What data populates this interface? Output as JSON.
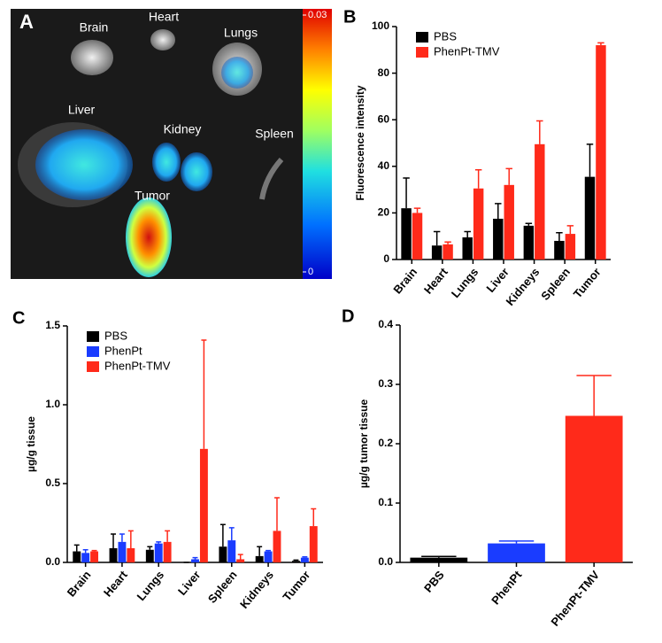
{
  "panel_a": {
    "panel_label": "A",
    "organs": [
      "Brain",
      "Heart",
      "Lungs",
      "Liver",
      "Kidney",
      "Spleen",
      "Tumor"
    ],
    "colorbar_ticks": [
      {
        "value": 0.03,
        "label": "0.03"
      },
      0
    ]
  },
  "chart_data": [
    {
      "type": "bar",
      "panel_label": "B",
      "y_label": "Fluorescence intensity",
      "categories": [
        "Brain",
        "Heart",
        "Lungs",
        "Liver",
        "Kidneys",
        "Spleen",
        "Tumor"
      ],
      "series": [
        {
          "name": "PBS",
          "color": "#000000",
          "values": [
            22,
            6,
            9.5,
            17.5,
            14.5,
            8,
            35.5
          ],
          "errors": [
            13,
            6,
            2.5,
            6.5,
            1,
            3.5,
            14
          ]
        },
        {
          "name": "PhenPt-TMV",
          "color": "#ff2a1a",
          "values": [
            20,
            6.5,
            30.5,
            32,
            49.5,
            11,
            92
          ],
          "errors": [
            2,
            1,
            8,
            7,
            10,
            3.5,
            1
          ]
        }
      ],
      "ylim": [
        0,
        100
      ],
      "yticks": [
        0,
        20,
        40,
        60,
        80,
        100
      ],
      "legend": "top-left"
    },
    {
      "type": "bar",
      "panel_label": "C",
      "y_label": "µg/g tissue",
      "categories": [
        "Brain",
        "Heart",
        "Lungs",
        "Liver",
        "Spleen",
        "Kidneys",
        "Tumor"
      ],
      "series": [
        {
          "name": "PBS",
          "color": "#000000",
          "values": [
            0.07,
            0.09,
            0.08,
            0.0,
            0.1,
            0.04,
            0.01
          ],
          "errors": [
            0.04,
            0.09,
            0.02,
            0,
            0.14,
            0.06,
            0.005
          ]
        },
        {
          "name": "PhenPt",
          "color": "#1a3cff",
          "values": [
            0.06,
            0.13,
            0.12,
            0.02,
            0.14,
            0.07,
            0.03
          ],
          "errors": [
            0.02,
            0.05,
            0.01,
            0.01,
            0.08,
            0.005,
            0.005
          ]
        },
        {
          "name": "PhenPt-TMV",
          "color": "#ff2a1a",
          "values": [
            0.07,
            0.09,
            0.13,
            0.72,
            0.02,
            0.2,
            0.23
          ],
          "errors": [
            0.005,
            0.11,
            0.07,
            0.69,
            0.03,
            0.21,
            0.11
          ]
        }
      ],
      "ylim": [
        0,
        1.5
      ],
      "yticks": [
        {
          "value": 0,
          "label": "0.0"
        },
        0.5,
        {
          "value": 1,
          "label": "1.0"
        },
        1.5
      ],
      "legend": "top-left"
    },
    {
      "type": "bar",
      "panel_label": "D",
      "y_label": "µg/g tumor tissue",
      "categories": [
        "PBS",
        "PhenPt",
        "PhenPt-TMV"
      ],
      "values": [
        0.008,
        0.032,
        0.247
      ],
      "errors": [
        0.002,
        0.004,
        0.068
      ],
      "colors": [
        "#000000",
        "#1a3cff",
        "#ff2a1a"
      ],
      "ylim": [
        0,
        0.4
      ],
      "yticks": [
        {
          "value": 0,
          "label": "0.0"
        },
        0.1,
        0.2,
        0.3,
        0.4
      ]
    }
  ]
}
